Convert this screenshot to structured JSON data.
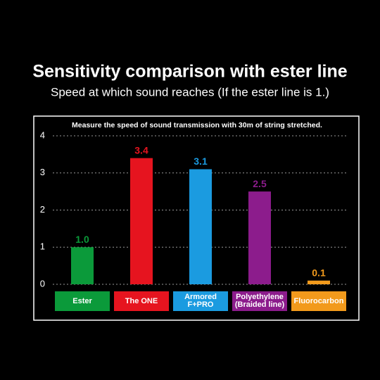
{
  "chart_data": {
    "type": "bar",
    "title": "Sensitivity comparison with ester line",
    "subtitle": "Speed at which sound reaches (If the ester line is 1.)",
    "note": "Measure the speed of sound transmission with 30m of string stretched.",
    "categories": [
      "Ester",
      "The ONE",
      "Armored F+PRO",
      "Polyethylene (Braided line)",
      "Fluorocarbon"
    ],
    "values": [
      1,
      3.4,
      3.1,
      2.5,
      0.1
    ],
    "value_labels": [
      "1.0",
      "3.4",
      "3.1",
      "2.5",
      "0.1"
    ],
    "colors": [
      "#0b9a3a",
      "#e6141f",
      "#1b9be0",
      "#8c1c8c",
      "#f29a1c"
    ],
    "ylim": [
      0,
      4
    ],
    "yticks": [
      0,
      1,
      2,
      3,
      4
    ],
    "grid": true
  }
}
